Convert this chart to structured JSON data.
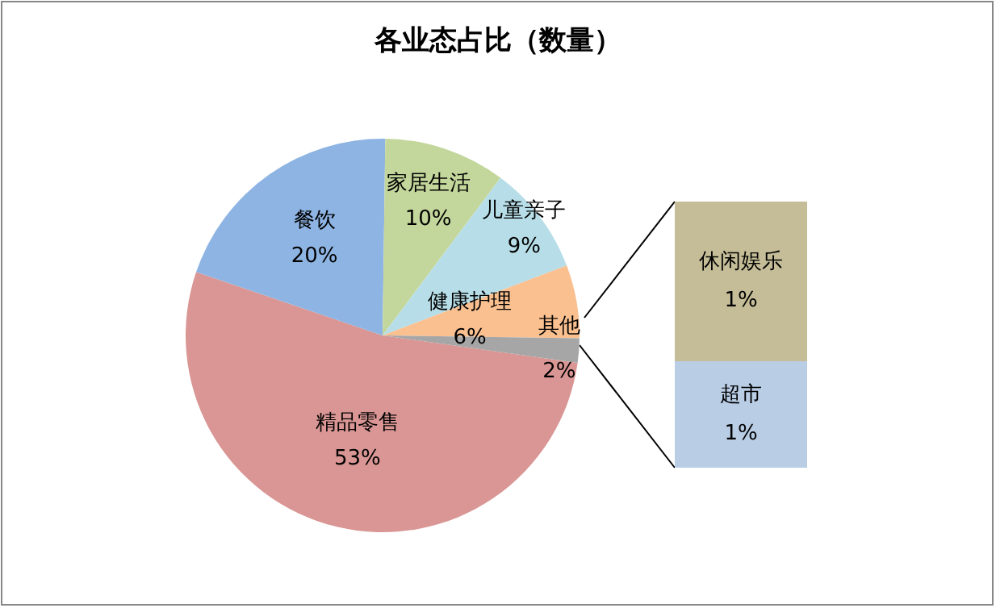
{
  "chart_data": [
    {
      "type": "pie",
      "title": "各业态占比（数量）",
      "categories": [
        "精品零售",
        "餐饮",
        "家居生活",
        "儿童亲子",
        "健康护理",
        "其他"
      ],
      "values": [
        53,
        20,
        10,
        9,
        6,
        2
      ],
      "value_labels": [
        "53%",
        "20%",
        "10%",
        "9%",
        "6%",
        "2%"
      ],
      "colors": [
        "#d99694",
        "#8eb4e3",
        "#c3d69b",
        "#b7dee8",
        "#fac090",
        "#a6a6a6"
      ],
      "legend": false
    },
    {
      "type": "bar",
      "stacked": true,
      "categories": [
        null
      ],
      "series": [
        {
          "name": "超市",
          "color": "#b9cde5",
          "values": [
            0.8
          ],
          "value_labels": [
            "1%"
          ]
        },
        {
          "name": "休闲娱乐",
          "color": "#c4bd97",
          "values": [
            1.2
          ],
          "value_labels": [
            "1%"
          ]
        }
      ],
      "legend": false
    }
  ]
}
